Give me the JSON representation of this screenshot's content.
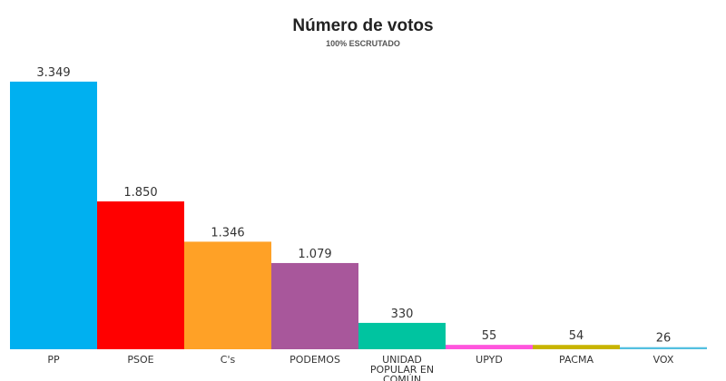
{
  "chart_data": {
    "type": "bar",
    "title": "Número de votos",
    "subtitle": "100% ESCRUTADO",
    "xlabel": "",
    "ylabel": "",
    "grid": false,
    "legend": "none",
    "categories": [
      "PP",
      "PSOE",
      "C's",
      "PODEMOS",
      "UNIDAD POPULAR EN COMÚN",
      "UPYD",
      "PACMA",
      "VOX"
    ],
    "category_lines": [
      [
        "PP"
      ],
      [
        "PSOE"
      ],
      [
        "C's"
      ],
      [
        "PODEMOS"
      ],
      [
        "UNIDAD",
        "POPULAR EN",
        "COMÚN"
      ],
      [
        "UPYD"
      ],
      [
        "PACMA"
      ],
      [
        "VOX"
      ]
    ],
    "values": [
      3349,
      1850,
      1346,
      1079,
      330,
      55,
      54,
      26
    ],
    "value_labels": [
      "3.349",
      "1.850",
      "1.346",
      "1.079",
      "330",
      "55",
      "54",
      "26"
    ],
    "colors": [
      "#00b0f0",
      "#ff0000",
      "#ffa126",
      "#a8579b",
      "#00c4a0",
      "#ff55dd",
      "#c8b400",
      "#54c0e0"
    ],
    "ylim": [
      0,
      3349
    ]
  }
}
